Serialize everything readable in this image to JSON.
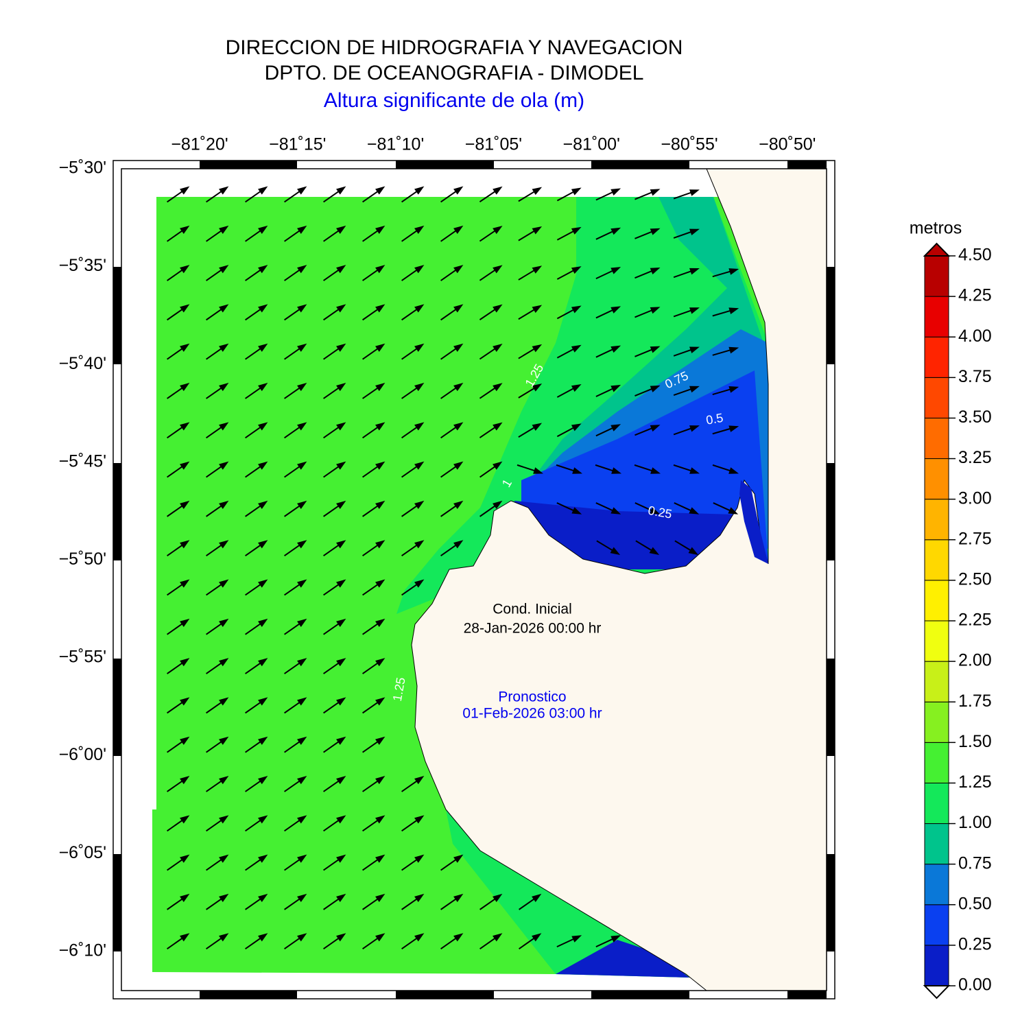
{
  "header": {
    "title": "DIRECCION DE HIDROGRAFIA Y NAVEGACION",
    "subtitle": "DPTO. DE OCEANOGRAFIA - DIMODEL",
    "variable": "Altura significante de ola (m)"
  },
  "map": {
    "lon_labels": [
      "−81˚20'",
      "−81˚15'",
      "−81˚10'",
      "−81˚05'",
      "−81˚00'",
      "−80˚55'",
      "−80˚50'"
    ],
    "lat_labels": [
      "−5˚30'",
      "−5˚35'",
      "−5˚40'",
      "−5˚45'",
      "−5˚50'",
      "−5˚55'",
      "−6˚00'",
      "−6˚05'",
      "−6˚10'"
    ],
    "contour_labels": [
      "1.25",
      "0.75",
      "0.5",
      "1",
      "0.25",
      "1.25"
    ],
    "initial": {
      "label": "Cond. Inicial",
      "time": "28-Jan-2026 00:00 hr"
    },
    "forecast": {
      "label": "Pronostico",
      "time": "01-Feb-2026 03:00 hr"
    }
  },
  "colorbar": {
    "title": "metros",
    "labels": [
      "0.00",
      "0.25",
      "0.50",
      "0.75",
      "1.00",
      "1.25",
      "1.50",
      "1.75",
      "2.00",
      "2.25",
      "2.50",
      "2.75",
      "3.00",
      "3.25",
      "3.50",
      "3.75",
      "4.00",
      "4.25",
      "4.50"
    ],
    "colors": [
      "#0a1ec8",
      "#0a40f0",
      "#0a78d8",
      "#00c48c",
      "#14e85a",
      "#45f032",
      "#86f020",
      "#c8f018",
      "#f0ff10",
      "#fff000",
      "#ffd800",
      "#ffb400",
      "#ff9000",
      "#ff6c00",
      "#ff4800",
      "#ff2400",
      "#e80000",
      "#b80000"
    ]
  }
}
